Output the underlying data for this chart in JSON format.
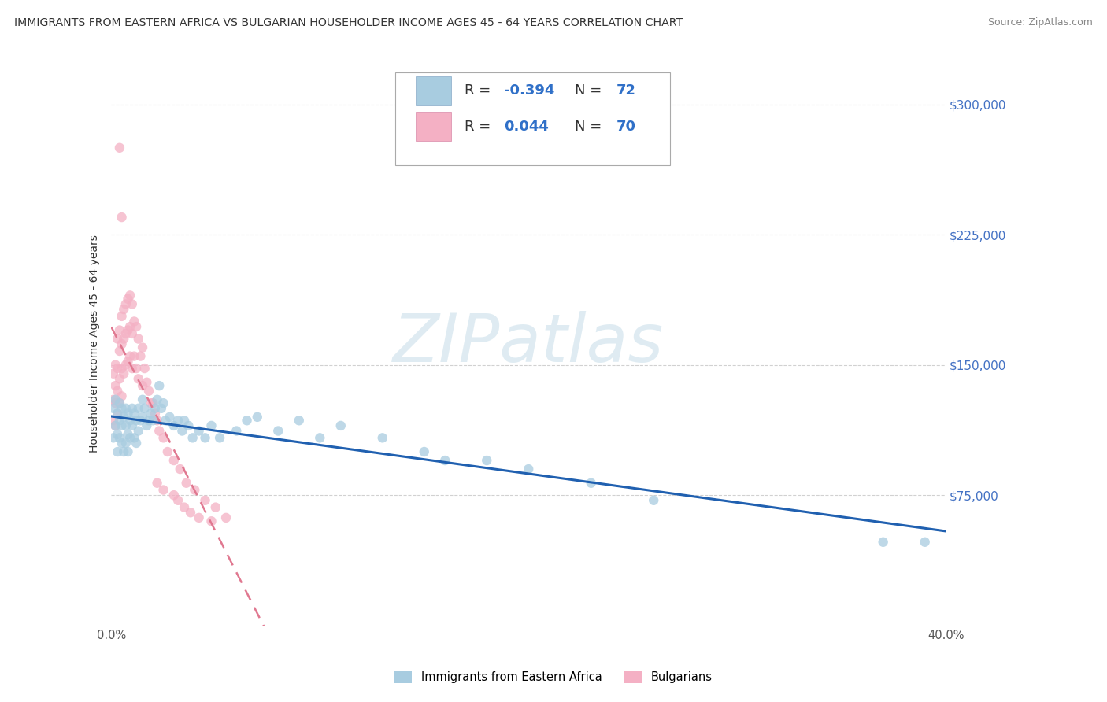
{
  "title": "IMMIGRANTS FROM EASTERN AFRICA VS BULGARIAN HOUSEHOLDER INCOME AGES 45 - 64 YEARS CORRELATION CHART",
  "source": "Source: ZipAtlas.com",
  "ylabel": "Householder Income Ages 45 - 64 years",
  "xlim": [
    0.0,
    0.4
  ],
  "ylim": [
    0,
    325000
  ],
  "ytick_vals": [
    75000,
    150000,
    225000,
    300000
  ],
  "ytick_labels": [
    "$75,000",
    "$150,000",
    "$225,000",
    "$300,000"
  ],
  "xtick_positions": [
    0.0,
    0.05,
    0.1,
    0.15,
    0.2,
    0.25,
    0.3,
    0.35,
    0.4
  ],
  "xtick_labels": [
    "0.0%",
    "",
    "",
    "",
    "",
    "",
    "",
    "",
    "40.0%"
  ],
  "r1": -0.394,
  "n1": 72,
  "r2": 0.044,
  "n2": 70,
  "color1": "#a8cce0",
  "color2": "#f4b0c4",
  "line_color1": "#2060b0",
  "line_color2": "#e07890",
  "watermark_color": "#c5dce8",
  "blue_scatter_x": [
    0.001,
    0.001,
    0.002,
    0.002,
    0.003,
    0.003,
    0.003,
    0.004,
    0.004,
    0.004,
    0.005,
    0.005,
    0.005,
    0.006,
    0.006,
    0.007,
    0.007,
    0.007,
    0.008,
    0.008,
    0.008,
    0.009,
    0.009,
    0.01,
    0.01,
    0.011,
    0.011,
    0.012,
    0.012,
    0.013,
    0.013,
    0.014,
    0.015,
    0.015,
    0.016,
    0.017,
    0.018,
    0.019,
    0.02,
    0.021,
    0.022,
    0.023,
    0.024,
    0.025,
    0.026,
    0.028,
    0.03,
    0.032,
    0.034,
    0.035,
    0.037,
    0.039,
    0.042,
    0.045,
    0.048,
    0.052,
    0.06,
    0.065,
    0.07,
    0.08,
    0.09,
    0.1,
    0.11,
    0.13,
    0.15,
    0.16,
    0.18,
    0.2,
    0.23,
    0.26,
    0.37,
    0.39
  ],
  "blue_scatter_y": [
    125000,
    108000,
    130000,
    115000,
    122000,
    110000,
    100000,
    128000,
    118000,
    108000,
    125000,
    115000,
    105000,
    120000,
    100000,
    125000,
    115000,
    105000,
    122000,
    110000,
    100000,
    118000,
    108000,
    125000,
    115000,
    122000,
    108000,
    118000,
    105000,
    125000,
    112000,
    118000,
    130000,
    120000,
    125000,
    115000,
    118000,
    122000,
    118000,
    125000,
    130000,
    138000,
    125000,
    128000,
    118000,
    120000,
    115000,
    118000,
    112000,
    118000,
    115000,
    108000,
    112000,
    108000,
    115000,
    108000,
    112000,
    118000,
    120000,
    112000,
    118000,
    108000,
    115000,
    108000,
    100000,
    95000,
    95000,
    90000,
    82000,
    72000,
    48000,
    48000
  ],
  "pink_scatter_x": [
    0.001,
    0.001,
    0.001,
    0.002,
    0.002,
    0.002,
    0.002,
    0.003,
    0.003,
    0.003,
    0.003,
    0.004,
    0.004,
    0.004,
    0.004,
    0.005,
    0.005,
    0.005,
    0.005,
    0.006,
    0.006,
    0.006,
    0.007,
    0.007,
    0.007,
    0.008,
    0.008,
    0.008,
    0.009,
    0.009,
    0.009,
    0.01,
    0.01,
    0.01,
    0.011,
    0.011,
    0.012,
    0.012,
    0.013,
    0.013,
    0.014,
    0.015,
    0.015,
    0.016,
    0.017,
    0.018,
    0.019,
    0.02,
    0.021,
    0.022,
    0.023,
    0.025,
    0.027,
    0.03,
    0.033,
    0.036,
    0.04,
    0.045,
    0.05,
    0.055,
    0.004,
    0.005,
    0.022,
    0.025,
    0.03,
    0.032,
    0.035,
    0.038,
    0.042,
    0.048
  ],
  "pink_scatter_y": [
    145000,
    130000,
    118000,
    150000,
    138000,
    128000,
    115000,
    165000,
    148000,
    135000,
    122000,
    170000,
    158000,
    142000,
    128000,
    178000,
    162000,
    148000,
    132000,
    182000,
    165000,
    145000,
    185000,
    168000,
    150000,
    188000,
    170000,
    152000,
    190000,
    172000,
    155000,
    185000,
    168000,
    148000,
    175000,
    155000,
    172000,
    148000,
    165000,
    142000,
    155000,
    160000,
    138000,
    148000,
    140000,
    135000,
    128000,
    128000,
    122000,
    118000,
    112000,
    108000,
    100000,
    95000,
    90000,
    82000,
    78000,
    72000,
    68000,
    62000,
    275000,
    235000,
    82000,
    78000,
    75000,
    72000,
    68000,
    65000,
    62000,
    60000
  ]
}
